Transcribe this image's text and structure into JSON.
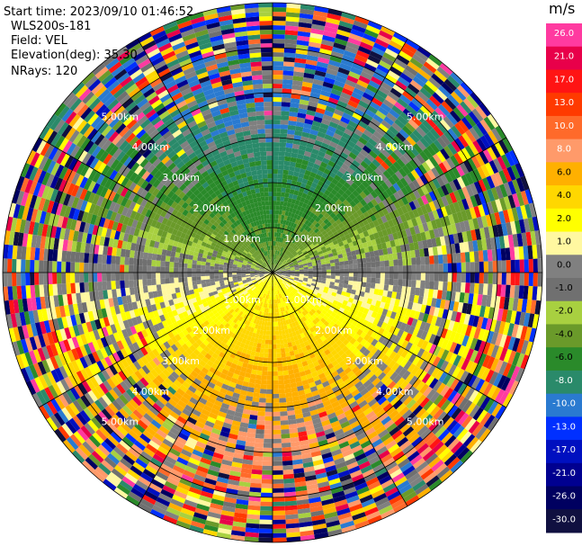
{
  "header": {
    "start_time": "Start time: 2023/09/10 01:46:52",
    "instrument": "WLS200s-181",
    "field": "Field: VEL",
    "elevation": "Elevation(deg): 35.30",
    "nrays": "NRays: 120"
  },
  "colorbar": {
    "unit": "m/s",
    "ticks": [
      "26.0",
      "21.0",
      "17.0",
      "13.0",
      "10.0",
      "8.0",
      "6.0",
      "4.0",
      "2.0",
      "1.0",
      "0.0",
      "-1.0",
      "-2.0",
      "-4.0",
      "-6.0",
      "-8.0",
      "-10.0",
      "-13.0",
      "-17.0",
      "-21.0",
      "-26.0",
      "-30.0"
    ],
    "colors": [
      "#ff3aa0",
      "#e8004a",
      "#ff1414",
      "#ff3a00",
      "#ff6a2a",
      "#ff9a6a",
      "#ffb000",
      "#ffd700",
      "#ffff00",
      "#fff8a0",
      "#808080",
      "#707070",
      "#a8d040",
      "#6a9a2a",
      "#2a8a2a",
      "#2a8a6a",
      "#2a7ad0",
      "#0030ff",
      "#0010c0",
      "#000090",
      "#000060",
      "#101040"
    ]
  },
  "chart_data": {
    "type": "heatmap",
    "projection": "polar-ppi",
    "nrays": 120,
    "range_rings_km": [
      "1.00km",
      "2.00km",
      "3.00km",
      "4.00km",
      "5.00km"
    ],
    "value_unit": "m/s",
    "value_range": [
      -30.0,
      26.0
    ]
  }
}
